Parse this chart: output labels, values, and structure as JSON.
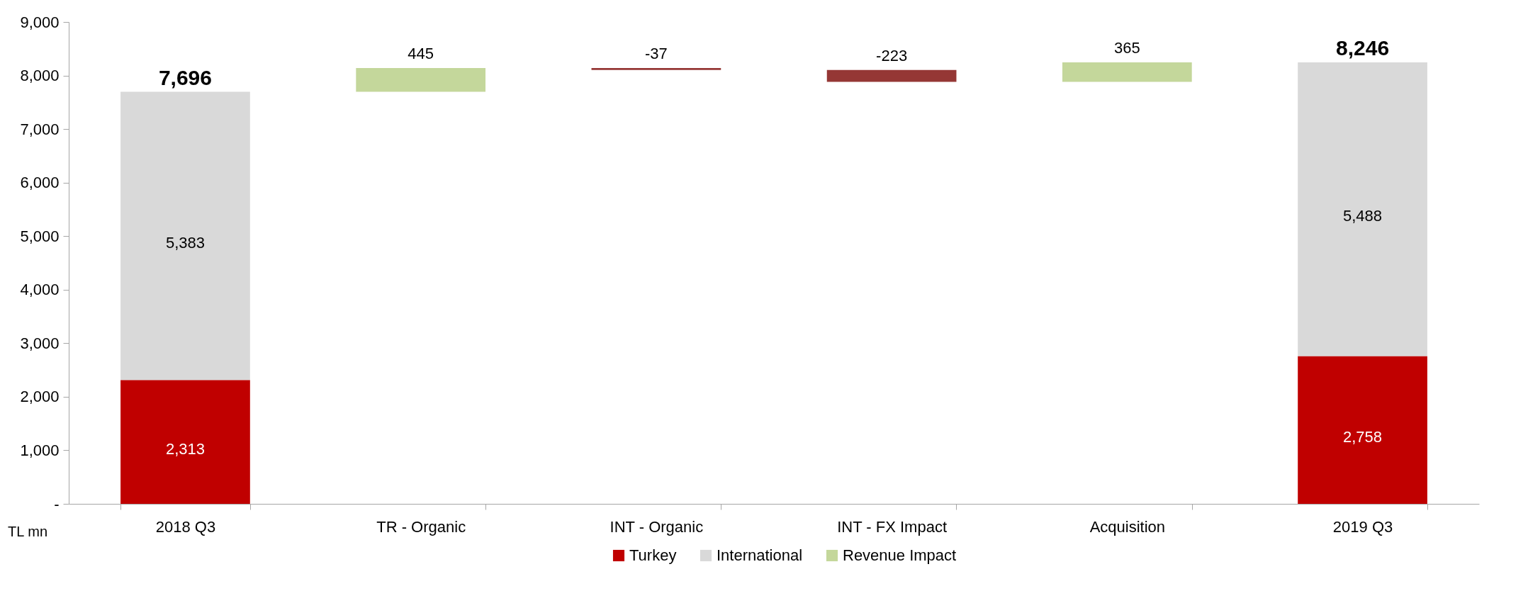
{
  "chart_data": {
    "type": "bar",
    "stacked": true,
    "categories": [
      "2018 Q3",
      "TR - Organic",
      "INT - Organic",
      "INT - FX Impact",
      "Acquisition",
      "2019 Q3"
    ],
    "series": [
      {
        "name": "Turkey",
        "color": "#c00000",
        "values": [
          2313,
          null,
          null,
          null,
          null,
          2758
        ],
        "value_labels": [
          "2,313",
          null,
          null,
          null,
          null,
          "2,758"
        ]
      },
      {
        "name": "International",
        "color": "#d9d9d9",
        "values": [
          5383,
          null,
          null,
          null,
          null,
          5488
        ],
        "value_labels": [
          "5,383",
          null,
          null,
          null,
          null,
          "5,488"
        ]
      },
      {
        "name": "Revenue Impact",
        "color": "#c4d79b",
        "colors": [
          null,
          "#c4d79b",
          "#953735",
          "#953735",
          "#c4d79b",
          null
        ],
        "values": [
          null,
          445,
          -37,
          -223,
          365,
          null
        ],
        "base": [
          null,
          7696,
          8141,
          8104,
          7881,
          null
        ],
        "value_labels": [
          null,
          "445",
          "-37",
          "-223",
          "365",
          null
        ]
      }
    ],
    "totals": [
      "7,696",
      null,
      null,
      null,
      null,
      "8,246"
    ],
    "ylim": [
      0,
      9000
    ],
    "yticks": [
      {
        "value": 0,
        "label": "-"
      },
      {
        "value": 1000,
        "label": "1,000"
      },
      {
        "value": 2000,
        "label": "2,000"
      },
      {
        "value": 3000,
        "label": "3,000"
      },
      {
        "value": 4000,
        "label": "4,000"
      },
      {
        "value": 5000,
        "label": "5,000"
      },
      {
        "value": 6000,
        "label": "6,000"
      },
      {
        "value": 7000,
        "label": "7,000"
      },
      {
        "value": 8000,
        "label": "8,000"
      },
      {
        "value": 9000,
        "label": "9,000"
      }
    ],
    "annotations": [
      "TL mn"
    ],
    "legend": "bottom",
    "grid": false
  }
}
